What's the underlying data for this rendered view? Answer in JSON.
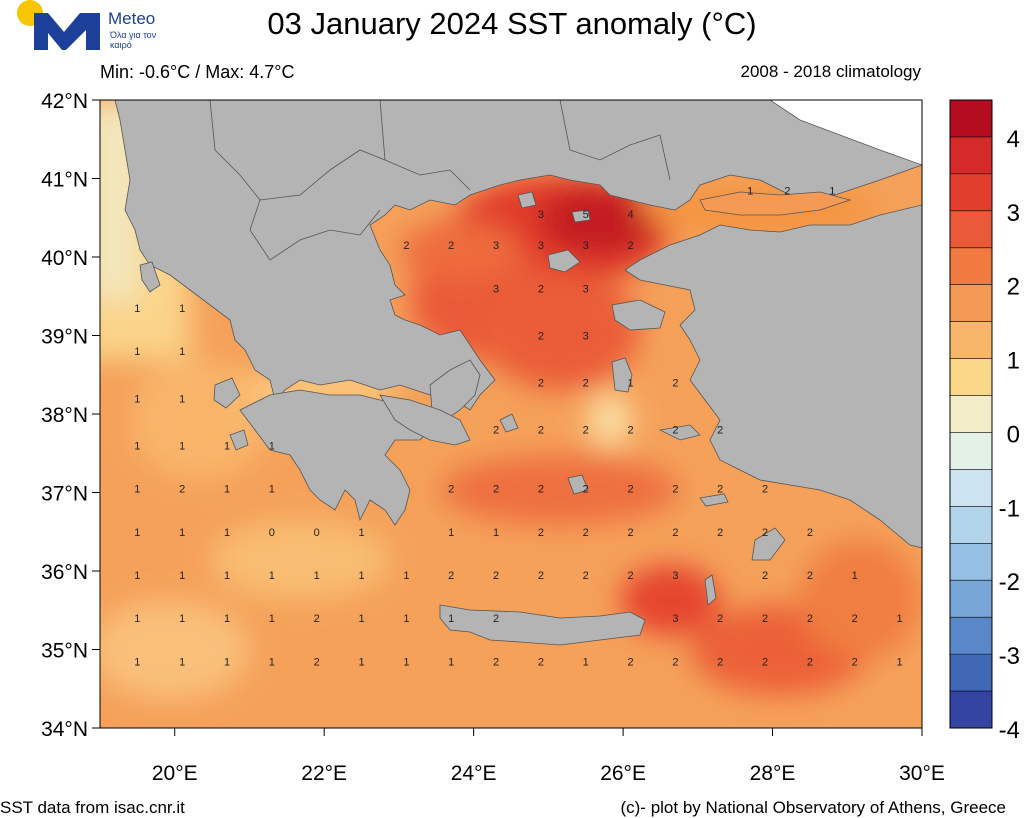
{
  "header": {
    "title": "03 January 2024 SST anomaly (°C)",
    "minmax": "Min: -0.6°C / Max: 4.7°C",
    "climatology": "2008 - 2018 climatology"
  },
  "logo": {
    "word": "Meteo",
    "tagline": "Όλα για τον καιρό",
    "sun_color": "#f7c600",
    "m_color": "#1c3f99"
  },
  "footer": {
    "source": "SST data from isac.cnr.it",
    "credit": "(c)- plot by National Observatory of Athens, Greece"
  },
  "map": {
    "lat_labels": [
      "42°N",
      "41°N",
      "40°N",
      "39°N",
      "38°N",
      "37°N",
      "36°N",
      "35°N",
      "34°N"
    ],
    "lon_labels": [
      "20°E",
      "22°E",
      "24°E",
      "26°E",
      "28°E",
      "30°E"
    ],
    "land_color": "#b4b4b4",
    "grid_labels": [
      {
        "lon": 19.5,
        "lat": 39.35,
        "v": "1"
      },
      {
        "lon": 20.1,
        "lat": 39.35,
        "v": "1"
      },
      {
        "lon": 19.5,
        "lat": 38.8,
        "v": "1"
      },
      {
        "lon": 20.1,
        "lat": 38.8,
        "v": "1"
      },
      {
        "lon": 19.5,
        "lat": 38.2,
        "v": "1"
      },
      {
        "lon": 20.1,
        "lat": 38.2,
        "v": "1"
      },
      {
        "lon": 19.5,
        "lat": 37.6,
        "v": "1"
      },
      {
        "lon": 20.1,
        "lat": 37.6,
        "v": "1"
      },
      {
        "lon": 20.7,
        "lat": 37.6,
        "v": "1"
      },
      {
        "lon": 21.3,
        "lat": 37.6,
        "v": "1"
      },
      {
        "lon": 19.5,
        "lat": 37.05,
        "v": "1"
      },
      {
        "lon": 20.1,
        "lat": 37.05,
        "v": "2"
      },
      {
        "lon": 20.7,
        "lat": 37.05,
        "v": "1"
      },
      {
        "lon": 21.3,
        "lat": 37.05,
        "v": "1"
      },
      {
        "lon": 19.5,
        "lat": 36.5,
        "v": "1"
      },
      {
        "lon": 20.1,
        "lat": 36.5,
        "v": "1"
      },
      {
        "lon": 20.7,
        "lat": 36.5,
        "v": "1"
      },
      {
        "lon": 21.3,
        "lat": 36.5,
        "v": "0"
      },
      {
        "lon": 21.9,
        "lat": 36.5,
        "v": "0"
      },
      {
        "lon": 22.5,
        "lat": 36.5,
        "v": "1"
      },
      {
        "lon": 23.7,
        "lat": 36.5,
        "v": "1"
      },
      {
        "lon": 24.3,
        "lat": 36.5,
        "v": "1"
      },
      {
        "lon": 24.9,
        "lat": 36.5,
        "v": "2"
      },
      {
        "lon": 25.5,
        "lat": 36.5,
        "v": "2"
      },
      {
        "lon": 26.1,
        "lat": 36.5,
        "v": "2"
      },
      {
        "lon": 26.7,
        "lat": 36.5,
        "v": "2"
      },
      {
        "lon": 27.3,
        "lat": 36.5,
        "v": "2"
      },
      {
        "lon": 27.9,
        "lat": 36.5,
        "v": "2"
      },
      {
        "lon": 28.5,
        "lat": 36.5,
        "v": "2"
      },
      {
        "lon": 19.5,
        "lat": 35.95,
        "v": "1"
      },
      {
        "lon": 20.1,
        "lat": 35.95,
        "v": "1"
      },
      {
        "lon": 20.7,
        "lat": 35.95,
        "v": "1"
      },
      {
        "lon": 21.3,
        "lat": 35.95,
        "v": "1"
      },
      {
        "lon": 21.9,
        "lat": 35.95,
        "v": "1"
      },
      {
        "lon": 22.5,
        "lat": 35.95,
        "v": "1"
      },
      {
        "lon": 23.1,
        "lat": 35.95,
        "v": "1"
      },
      {
        "lon": 23.7,
        "lat": 35.95,
        "v": "2"
      },
      {
        "lon": 24.3,
        "lat": 35.95,
        "v": "2"
      },
      {
        "lon": 24.9,
        "lat": 35.95,
        "v": "2"
      },
      {
        "lon": 25.5,
        "lat": 35.95,
        "v": "2"
      },
      {
        "lon": 26.1,
        "lat": 35.95,
        "v": "2"
      },
      {
        "lon": 26.7,
        "lat": 35.95,
        "v": "3"
      },
      {
        "lon": 27.9,
        "lat": 35.95,
        "v": "2"
      },
      {
        "lon": 28.5,
        "lat": 35.95,
        "v": "2"
      },
      {
        "lon": 29.1,
        "lat": 35.95,
        "v": "1"
      },
      {
        "lon": 19.5,
        "lat": 35.4,
        "v": "1"
      },
      {
        "lon": 20.1,
        "lat": 35.4,
        "v": "1"
      },
      {
        "lon": 20.7,
        "lat": 35.4,
        "v": "1"
      },
      {
        "lon": 21.3,
        "lat": 35.4,
        "v": "1"
      },
      {
        "lon": 21.9,
        "lat": 35.4,
        "v": "2"
      },
      {
        "lon": 22.5,
        "lat": 35.4,
        "v": "1"
      },
      {
        "lon": 23.1,
        "lat": 35.4,
        "v": "1"
      },
      {
        "lon": 23.7,
        "lat": 35.4,
        "v": "1"
      },
      {
        "lon": 24.3,
        "lat": 35.4,
        "v": "2"
      },
      {
        "lon": 26.7,
        "lat": 35.4,
        "v": "3"
      },
      {
        "lon": 27.3,
        "lat": 35.4,
        "v": "2"
      },
      {
        "lon": 27.9,
        "lat": 35.4,
        "v": "2"
      },
      {
        "lon": 28.5,
        "lat": 35.4,
        "v": "2"
      },
      {
        "lon": 29.1,
        "lat": 35.4,
        "v": "2"
      },
      {
        "lon": 29.7,
        "lat": 35.4,
        "v": "1"
      },
      {
        "lon": 19.5,
        "lat": 34.85,
        "v": "1"
      },
      {
        "lon": 20.1,
        "lat": 34.85,
        "v": "1"
      },
      {
        "lon": 20.7,
        "lat": 34.85,
        "v": "1"
      },
      {
        "lon": 21.3,
        "lat": 34.85,
        "v": "1"
      },
      {
        "lon": 21.9,
        "lat": 34.85,
        "v": "2"
      },
      {
        "lon": 22.5,
        "lat": 34.85,
        "v": "1"
      },
      {
        "lon": 23.1,
        "lat": 34.85,
        "v": "1"
      },
      {
        "lon": 23.7,
        "lat": 34.85,
        "v": "1"
      },
      {
        "lon": 24.3,
        "lat": 34.85,
        "v": "2"
      },
      {
        "lon": 24.9,
        "lat": 34.85,
        "v": "2"
      },
      {
        "lon": 25.5,
        "lat": 34.85,
        "v": "1"
      },
      {
        "lon": 26.1,
        "lat": 34.85,
        "v": "2"
      },
      {
        "lon": 26.7,
        "lat": 34.85,
        "v": "2"
      },
      {
        "lon": 27.3,
        "lat": 34.85,
        "v": "2"
      },
      {
        "lon": 27.9,
        "lat": 34.85,
        "v": "2"
      },
      {
        "lon": 28.5,
        "lat": 34.85,
        "v": "2"
      },
      {
        "lon": 29.1,
        "lat": 34.85,
        "v": "2"
      },
      {
        "lon": 29.7,
        "lat": 34.85,
        "v": "1"
      },
      {
        "lon": 23.1,
        "lat": 40.15,
        "v": "2"
      },
      {
        "lon": 23.7,
        "lat": 40.15,
        "v": "2"
      },
      {
        "lon": 24.3,
        "lat": 40.15,
        "v": "3"
      },
      {
        "lon": 24.9,
        "lat": 40.15,
        "v": "3"
      },
      {
        "lon": 25.5,
        "lat": 40.15,
        "v": "3"
      },
      {
        "lon": 26.1,
        "lat": 40.15,
        "v": "2"
      },
      {
        "lon": 24.9,
        "lat": 40.55,
        "v": "3"
      },
      {
        "lon": 25.5,
        "lat": 40.55,
        "v": "5"
      },
      {
        "lon": 26.1,
        "lat": 40.55,
        "v": "4"
      },
      {
        "lon": 24.3,
        "lat": 39.6,
        "v": "3"
      },
      {
        "lon": 24.9,
        "lat": 39.6,
        "v": "2"
      },
      {
        "lon": 25.5,
        "lat": 39.6,
        "v": "3"
      },
      {
        "lon": 24.9,
        "lat": 39.0,
        "v": "2"
      },
      {
        "lon": 25.5,
        "lat": 39.0,
        "v": "3"
      },
      {
        "lon": 24.9,
        "lat": 38.4,
        "v": "2"
      },
      {
        "lon": 25.5,
        "lat": 38.4,
        "v": "2"
      },
      {
        "lon": 26.1,
        "lat": 38.4,
        "v": "1"
      },
      {
        "lon": 26.7,
        "lat": 38.4,
        "v": "2"
      },
      {
        "lon": 24.3,
        "lat": 37.8,
        "v": "2"
      },
      {
        "lon": 24.9,
        "lat": 37.8,
        "v": "2"
      },
      {
        "lon": 25.5,
        "lat": 37.8,
        "v": "2"
      },
      {
        "lon": 26.1,
        "lat": 37.8,
        "v": "2"
      },
      {
        "lon": 26.7,
        "lat": 37.8,
        "v": "2"
      },
      {
        "lon": 27.3,
        "lat": 37.8,
        "v": "2"
      },
      {
        "lon": 23.7,
        "lat": 37.05,
        "v": "2"
      },
      {
        "lon": 24.3,
        "lat": 37.05,
        "v": "2"
      },
      {
        "lon": 24.9,
        "lat": 37.05,
        "v": "2"
      },
      {
        "lon": 25.5,
        "lat": 37.05,
        "v": "2"
      },
      {
        "lon": 26.1,
        "lat": 37.05,
        "v": "2"
      },
      {
        "lon": 26.7,
        "lat": 37.05,
        "v": "2"
      },
      {
        "lon": 27.3,
        "lat": 37.05,
        "v": "2"
      },
      {
        "lon": 27.9,
        "lat": 37.05,
        "v": "2"
      },
      {
        "lon": 27.7,
        "lat": 40.85,
        "v": "1"
      },
      {
        "lon": 28.2,
        "lat": 40.85,
        "v": "2"
      },
      {
        "lon": 28.8,
        "lat": 40.85,
        "v": "1"
      }
    ]
  },
  "colorbar": {
    "colors": [
      "#b40d22",
      "#d42a2a",
      "#e23e2e",
      "#ea5a38",
      "#f07a40",
      "#f59a55",
      "#f8b66a",
      "#fad689",
      "#f2ecc8",
      "#e4f1e6",
      "#cce4f2",
      "#b2d4eb",
      "#96c0e3",
      "#78a6d6",
      "#5a87c8",
      "#4168b5",
      "#3344a3"
    ],
    "labels": [
      "4",
      "3",
      "2",
      "1",
      "0",
      "-1",
      "-2",
      "-3",
      "-4"
    ]
  }
}
